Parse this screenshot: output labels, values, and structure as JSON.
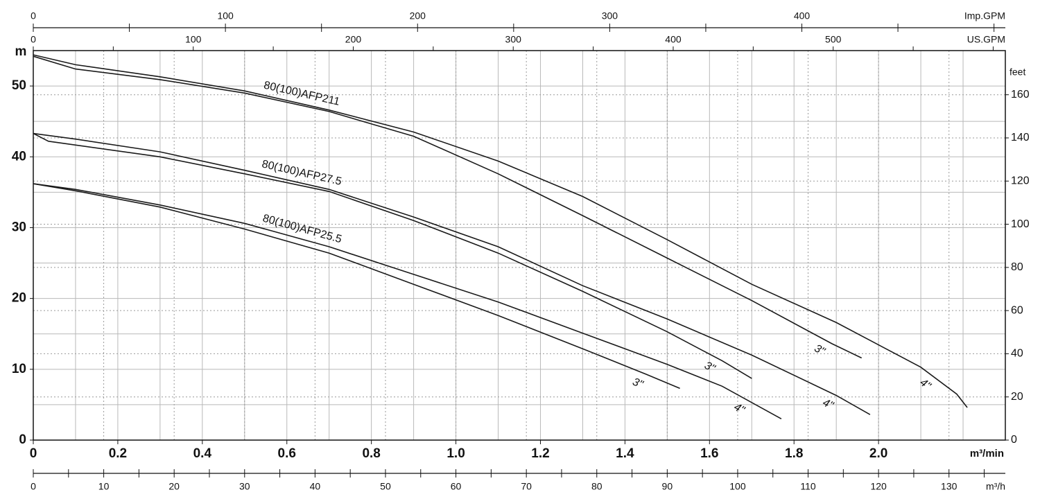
{
  "chart_data": {
    "type": "line",
    "x_label": "m³/min",
    "y_label": "m",
    "y2_label": "feet",
    "xlim": [
      0,
      2.3
    ],
    "ylim": [
      0,
      55
    ],
    "xticks": [
      0,
      0.2,
      0.4,
      0.6,
      0.8,
      {
        "value": 1,
        "label": "1.0"
      },
      1.2,
      1.4,
      1.6,
      1.8,
      {
        "value": 2,
        "label": "2.0"
      }
    ],
    "xgrid": [
      0.1,
      0.2,
      0.3,
      0.4,
      0.5,
      0.6,
      0.7,
      0.8,
      0.9,
      1,
      1.1,
      1.2,
      1.3,
      1.4,
      1.5,
      1.6,
      1.7,
      1.8,
      1.9,
      2,
      2.1,
      2.2
    ],
    "yticks": [
      0,
      10,
      20,
      30,
      40,
      50
    ],
    "ygrid": [
      5,
      10,
      15,
      20,
      25,
      30,
      35,
      40,
      45,
      50
    ],
    "y2lim": [
      0,
      180.45
    ],
    "y2ticks": [
      0,
      20,
      40,
      60,
      80,
      100,
      120,
      140,
      160
    ],
    "top_axes": [
      {
        "label": "Imp.GPM",
        "lim": [
          0,
          505.9
        ],
        "ticks": [
          0,
          100,
          200,
          300,
          400
        ],
        "minor": [
          50,
          150,
          250,
          350,
          450,
          500
        ]
      },
      {
        "label": "US.GPM",
        "lim": [
          0,
          607.6
        ],
        "ticks": [
          0,
          100,
          200,
          300,
          400,
          500
        ],
        "minor": [
          50,
          150,
          250,
          350,
          450,
          550,
          600
        ]
      }
    ],
    "bottom_axis": {
      "label": "m³/h",
      "lim": [
        0,
        138
      ],
      "ticks": [
        0,
        10,
        20,
        30,
        40,
        50,
        60,
        70,
        80,
        90,
        100,
        110,
        120,
        130
      ],
      "minor": [
        5,
        15,
        25,
        35,
        45,
        55,
        65,
        75,
        85,
        95,
        105,
        115,
        125,
        135
      ]
    },
    "series": [
      {
        "name": "80(100)AFP211",
        "color": "#1a1a1a",
        "curves": [
          {
            "label": "4\"",
            "x": [
              0,
              0.1,
              0.3,
              0.5,
              0.7,
              0.9,
              1.1,
              1.3,
              1.5,
              1.7,
              1.9,
              2.1,
              2.185,
              2.21
            ],
            "values": [
              54.4,
              53.0,
              51.3,
              49.3,
              46.6,
              43.5,
              39.4,
              34.4,
              28.3,
              22.0,
              16.6,
              10.3,
              6.5,
              4.6
            ]
          },
          {
            "label": "3\"",
            "x": [
              0,
              0.1,
              0.3,
              0.5,
              0.7,
              0.9,
              1.1,
              1.3,
              1.5,
              1.7,
              1.89,
              1.96
            ],
            "values": [
              54.2,
              52.4,
              50.9,
              49.0,
              46.4,
              42.9,
              37.6,
              31.7,
              25.7,
              19.7,
              13.6,
              11.6
            ]
          }
        ]
      },
      {
        "name": "80(100)AFP27.5",
        "color": "#1a1a1a",
        "curves": [
          {
            "label": "4\"",
            "x": [
              0,
              0.1,
              0.3,
              0.5,
              0.7,
              0.9,
              1.1,
              1.3,
              1.5,
              1.7,
              1.9,
              1.98
            ],
            "values": [
              43.3,
              42.5,
              40.7,
              38.1,
              35.4,
              31.5,
              27.3,
              21.8,
              17.1,
              12.0,
              6.3,
              3.6
            ]
          },
          {
            "label": "3\"",
            "x": [
              0,
              0.036,
              0.3,
              0.5,
              0.7,
              0.9,
              1.1,
              1.3,
              1.5,
              1.63,
              1.7
            ],
            "values": [
              43.3,
              42.2,
              40.0,
              37.6,
              35.1,
              31.0,
              26.4,
              21.0,
              15.3,
              11.2,
              8.7
            ]
          }
        ]
      },
      {
        "name": "80(100)AFP25.5",
        "color": "#1a1a1a",
        "curves": [
          {
            "label": "4\"",
            "x": [
              0,
              0.1,
              0.3,
              0.5,
              0.7,
              0.9,
              1.1,
              1.3,
              1.5,
              1.63,
              1.77
            ],
            "values": [
              36.2,
              35.4,
              33.2,
              30.6,
              27.3,
              23.4,
              19.5,
              15.1,
              10.7,
              7.6,
              3.0
            ]
          },
          {
            "label": "3\"",
            "x": [
              0,
              0.1,
              0.3,
              0.5,
              0.7,
              0.9,
              1.1,
              1.3,
              1.45,
              1.53
            ],
            "values": [
              36.2,
              35.2,
              32.9,
              29.8,
              26.4,
              22.0,
              17.6,
              12.9,
              9.3,
              7.3
            ]
          }
        ]
      }
    ]
  }
}
